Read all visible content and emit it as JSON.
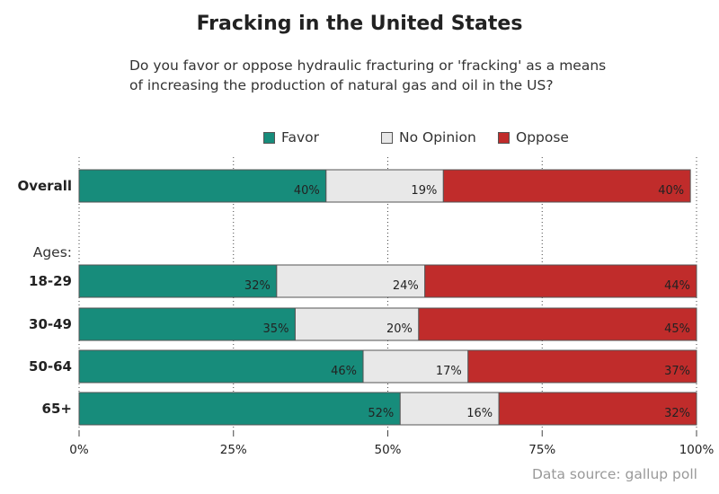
{
  "chart_data": {
    "type": "bar",
    "orientation": "horizontal",
    "stacked": true,
    "percent_scale": true,
    "title": "Fracking in the United States",
    "subtitle": [
      "Do you favor or oppose hydraulic fracturing or 'fracking' as a means",
      "of increasing the production of natural gas and oil in the US?"
    ],
    "group_label": "Ages:",
    "categories": [
      "Overall",
      "18-29",
      "30-49",
      "50-64",
      "65+"
    ],
    "series": [
      {
        "name": "Favor",
        "color": "#178c7b",
        "values": [
          40,
          32,
          35,
          46,
          52
        ]
      },
      {
        "name": "No Opinion",
        "color": "#e8e8e8",
        "values": [
          19,
          24,
          20,
          17,
          16
        ]
      },
      {
        "name": "Oppose",
        "color": "#c02c2b",
        "values": [
          40,
          44,
          45,
          37,
          32
        ]
      }
    ],
    "data_labels": [
      [
        "40%",
        "19%",
        "40%"
      ],
      [
        "32%",
        "24%",
        "44%"
      ],
      [
        "35%",
        "20%",
        "45%"
      ],
      [
        "46%",
        "17%",
        "37%"
      ],
      [
        "52%",
        "16%",
        "32%"
      ]
    ],
    "xticks": [
      "0%",
      "25%",
      "50%",
      "75%",
      "100%"
    ],
    "xlim": [
      0,
      100
    ],
    "grid": true,
    "legend_position": "top",
    "source": "Data source: gallup poll"
  }
}
